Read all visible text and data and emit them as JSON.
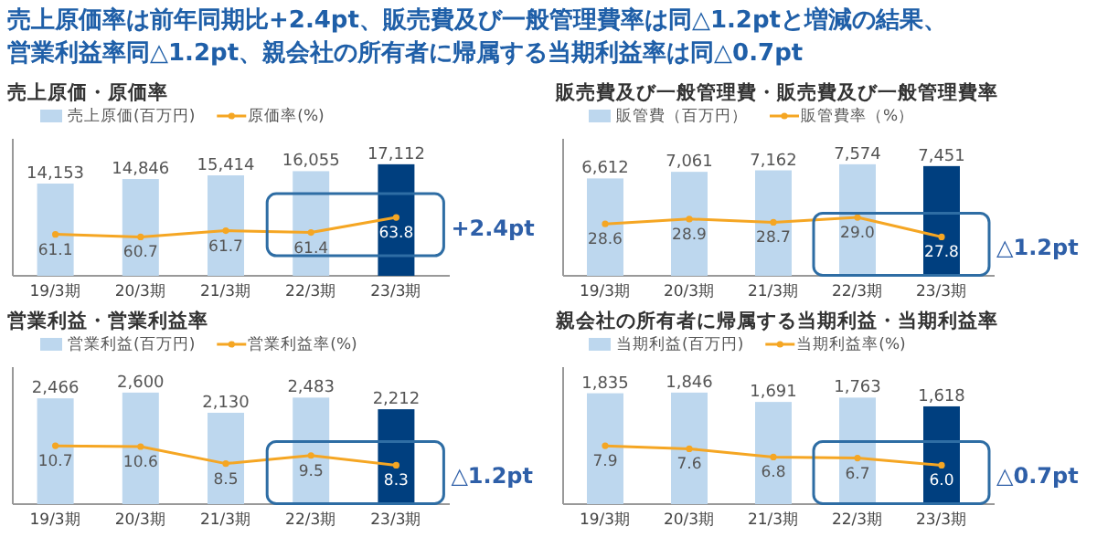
{
  "chart_data": [
    {
      "type": "other",
      "title": "売上原価率は前年同期比+2.4pt、販売費及び一般管理費率は同△1.2ptと増減の結果、",
      "subtitle": "営業利益率同△1.2pt、親会社の所有者に帰属する当期利益率は同△0.7pt"
    },
    {
      "type": "bar",
      "title": "売上原価・原価率",
      "categories": [
        "19/3期",
        "20/3期",
        "21/3期",
        "22/3期",
        "23/3期"
      ],
      "legend": "top left",
      "tick_labels": "x",
      "annotations": [
        "+2.4pt"
      ],
      "series": [
        {
          "name": "売上原価(百万円)",
          "color": "#bdd7ee",
          "colors": [
            "#bdd7ee",
            "#bdd7ee",
            "#bdd7ee",
            "#bdd7ee",
            "#003f7f"
          ],
          "values": [
            14153,
            14846,
            15414,
            16055,
            17112
          ],
          "value_labels": [
            "14,153",
            "14,846",
            "15,414",
            "16,055",
            "17,112"
          ]
        },
        {
          "name": "原価率(%)",
          "type": "line",
          "axis": "y2",
          "marker": "circle",
          "color": "#f5a623",
          "values": [
            61.1,
            60.7,
            61.7,
            61.4,
            63.8
          ],
          "value_labels": [
            "61.1",
            "60.7",
            "61.7",
            "61.4",
            "63.8"
          ]
        }
      ]
    },
    {
      "type": "bar",
      "title": "販売費及び一般管理費・販売費及び一般管理費率",
      "categories": [
        "19/3期",
        "20/3期",
        "21/3期",
        "22/3期",
        "23/3期"
      ],
      "legend": "top left",
      "tick_labels": "x",
      "annotations": [
        "△1.2pt"
      ],
      "series": [
        {
          "name": "販管費（百万円）",
          "color": "#bdd7ee",
          "colors": [
            "#bdd7ee",
            "#bdd7ee",
            "#bdd7ee",
            "#bdd7ee",
            "#003f7f"
          ],
          "values": [
            6612,
            7061,
            7162,
            7574,
            7451
          ],
          "value_labels": [
            "6,612",
            "7,061",
            "7,162",
            "7,574",
            "7,451"
          ]
        },
        {
          "name": "販管費率（%）",
          "type": "line",
          "axis": "y2",
          "marker": "circle",
          "color": "#f5a623",
          "values": [
            28.6,
            28.9,
            28.7,
            29.0,
            27.8
          ],
          "value_labels": [
            "28.6",
            "28.9",
            "28.7",
            "29.0",
            "27.8"
          ]
        }
      ]
    },
    {
      "type": "bar",
      "title": "営業利益・営業利益率",
      "categories": [
        "19/3期",
        "20/3期",
        "21/3期",
        "22/3期",
        "23/3期"
      ],
      "legend": "top left",
      "tick_labels": "x",
      "annotations": [
        "△1.2pt"
      ],
      "series": [
        {
          "name": "営業利益(百万円)",
          "color": "#bdd7ee",
          "colors": [
            "#bdd7ee",
            "#bdd7ee",
            "#bdd7ee",
            "#bdd7ee",
            "#003f7f"
          ],
          "values": [
            2466,
            2600,
            2130,
            2483,
            2212
          ],
          "value_labels": [
            "2,466",
            "2,600",
            "2,130",
            "2,483",
            "2,212"
          ]
        },
        {
          "name": "営業利益率(%)",
          "type": "line",
          "axis": "y2",
          "marker": "circle",
          "color": "#f5a623",
          "values": [
            10.7,
            10.6,
            8.5,
            9.5,
            8.3
          ],
          "value_labels": [
            "10.7",
            "10.6",
            "8.5",
            "9.5",
            "8.3"
          ]
        }
      ]
    },
    {
      "type": "bar",
      "title": "親会社の所有者に帰属する当期利益・当期利益率",
      "categories": [
        "19/3期",
        "20/3期",
        "21/3期",
        "22/3期",
        "23/3期"
      ],
      "legend": "top left",
      "tick_labels": "x",
      "annotations": [
        "△0.7pt"
      ],
      "series": [
        {
          "name": "当期利益(百万円)",
          "color": "#bdd7ee",
          "colors": [
            "#bdd7ee",
            "#bdd7ee",
            "#bdd7ee",
            "#bdd7ee",
            "#003f7f"
          ],
          "values": [
            1835,
            1846,
            1691,
            1763,
            1618
          ],
          "value_labels": [
            "1,835",
            "1,846",
            "1,691",
            "1,763",
            "1,618"
          ]
        },
        {
          "name": "当期利益率(%)",
          "type": "line",
          "axis": "y2",
          "marker": "circle",
          "color": "#f5a623",
          "values": [
            7.9,
            7.6,
            6.8,
            6.7,
            6.0
          ],
          "value_labels": [
            "7.9",
            "7.6",
            "6.8",
            "6.7",
            "6.0"
          ]
        }
      ]
    }
  ]
}
